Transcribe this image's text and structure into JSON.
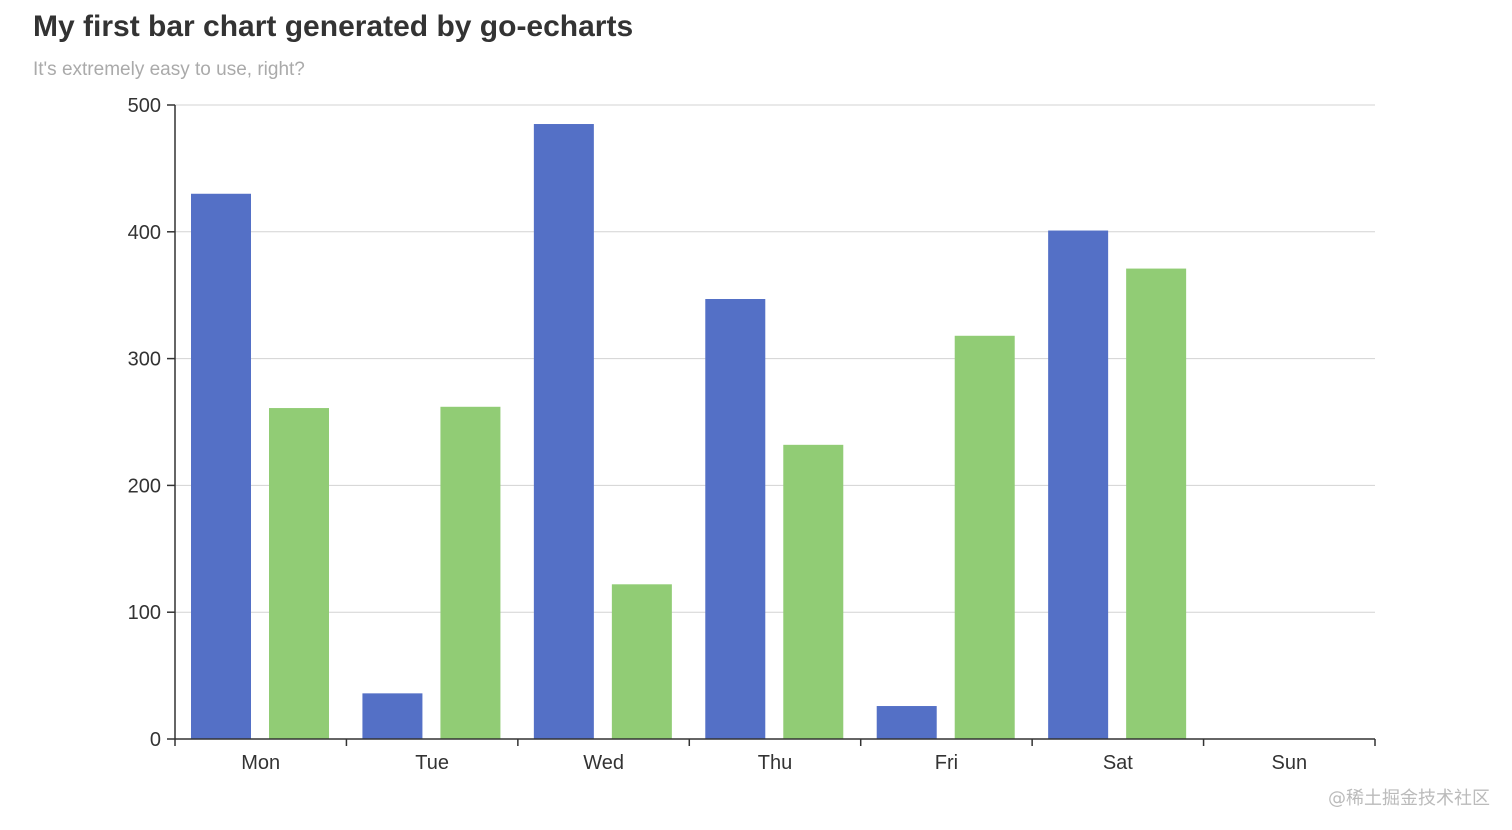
{
  "chart_data": {
    "type": "bar",
    "title": "My first bar chart generated by go-echarts",
    "subtitle": "It's extremely easy to use, right?",
    "categories": [
      "Mon",
      "Tue",
      "Wed",
      "Thu",
      "Fri",
      "Sat",
      "Sun"
    ],
    "series": [
      {
        "values": [
          430,
          36,
          485,
          347,
          26,
          401,
          null
        ],
        "color": "#5470c6"
      },
      {
        "values": [
          261,
          262,
          122,
          232,
          318,
          371,
          null
        ],
        "color": "#91cc75"
      }
    ],
    "y_ticks": [
      "0",
      "100",
      "200",
      "300",
      "400",
      "500"
    ],
    "ylim": [
      0,
      500
    ],
    "grid": true,
    "legend": "none"
  },
  "watermark": "@稀土掘金技术社区"
}
